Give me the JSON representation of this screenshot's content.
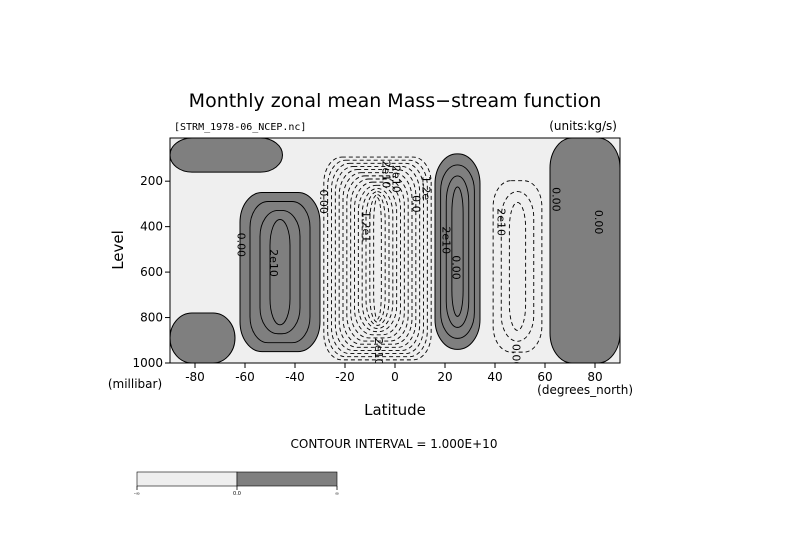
{
  "chart_data": {
    "type": "heatmap",
    "title": "Monthly zonal mean Mass−stream function",
    "subtitle_left": "[STRM_1978-06_NCEP.nc]",
    "subtitle_right": "(units:kg/s)",
    "xlabel": "Latitude",
    "ylabel": "Level",
    "x_units": "(degrees_north)",
    "y_units": "(millibar)",
    "xlim": [
      -90,
      90
    ],
    "ylim": [
      1000,
      10
    ],
    "y_reversed": true,
    "x_ticks": [
      {
        "value": -80,
        "label": "-80"
      },
      {
        "value": -60,
        "label": "-60"
      },
      {
        "value": -40,
        "label": "-40"
      },
      {
        "value": -20,
        "label": "-20"
      },
      {
        "value": 0,
        "label": "0"
      },
      {
        "value": 20,
        "label": "20"
      },
      {
        "value": 40,
        "label": "40"
      },
      {
        "value": 60,
        "label": "60"
      },
      {
        "value": 80,
        "label": "80"
      }
    ],
    "y_ticks": [
      {
        "value": 200,
        "label": "200"
      },
      {
        "value": 400,
        "label": "400"
      },
      {
        "value": 600,
        "label": "600"
      },
      {
        "value": 800,
        "label": "800"
      },
      {
        "value": 1000,
        "label": "1000"
      }
    ],
    "contour_interval_text": "CONTOUR INTERVAL = 1.000E+10",
    "contour_interval": 10000000000.0,
    "colors": {
      "negative": "#efefef",
      "positive": "#7f7f7f",
      "line": "#000000"
    },
    "positive_regions": [
      {
        "name": "SH edge",
        "lat": [
          -90,
          -64
        ],
        "p": [
          780,
          1000
        ]
      },
      {
        "name": "SH Ferrel cell",
        "lat": [
          -62,
          -30
        ],
        "p": [
          250,
          950
        ]
      },
      {
        "name": "NH Hadley cell",
        "lat": [
          16,
          34
        ],
        "p": [
          80,
          940
        ]
      },
      {
        "name": "NH high latitudes",
        "lat": [
          62,
          90
        ],
        "p": [
          10,
          1000
        ]
      },
      {
        "name": "upper SH",
        "lat": [
          -90,
          -45
        ],
        "p": [
          10,
          160
        ]
      }
    ],
    "negative_regions": [
      {
        "name": "SH Hadley (winter) cell",
        "lat": [
          -30,
          16
        ],
        "p": [
          80,
          1000
        ]
      },
      {
        "name": "NH Ferrel cell",
        "lat": [
          36,
          62
        ],
        "p": [
          150,
          1000
        ]
      }
    ],
    "contour_labels": [
      {
        "text": "0.00",
        "lat": -63,
        "p": 480
      },
      {
        "text": "2e10",
        "lat": -50,
        "p": 560
      },
      {
        "text": "0.00",
        "lat": -30,
        "p": 290
      },
      {
        "text": "2e10",
        "lat": -5,
        "p": 170
      },
      {
        "text": "2e10",
        "lat": -1,
        "p": 190
      },
      {
        "text": "1.2e1",
        "lat": -13,
        "p": 400
      },
      {
        "text": "0.0",
        "lat": 7,
        "p": 300
      },
      {
        "text": "1.2e",
        "lat": 11,
        "p": 230
      },
      {
        "text": "2e10",
        "lat": 19,
        "p": 460
      },
      {
        "text": "0.00",
        "lat": 23,
        "p": 580
      },
      {
        "text": "2e10",
        "lat": 41,
        "p": 380
      },
      {
        "text": "0.00",
        "lat": 63,
        "p": 280
      },
      {
        "text": "0.00",
        "lat": 80,
        "p": 380
      },
      {
        "text": "2e10",
        "lat": -8,
        "p": 950
      },
      {
        "text": "0.00",
        "lat": 47,
        "p": 970
      }
    ],
    "colorbar": {
      "labels": [
        "-∞",
        "0.0",
        "∞"
      ]
    }
  }
}
